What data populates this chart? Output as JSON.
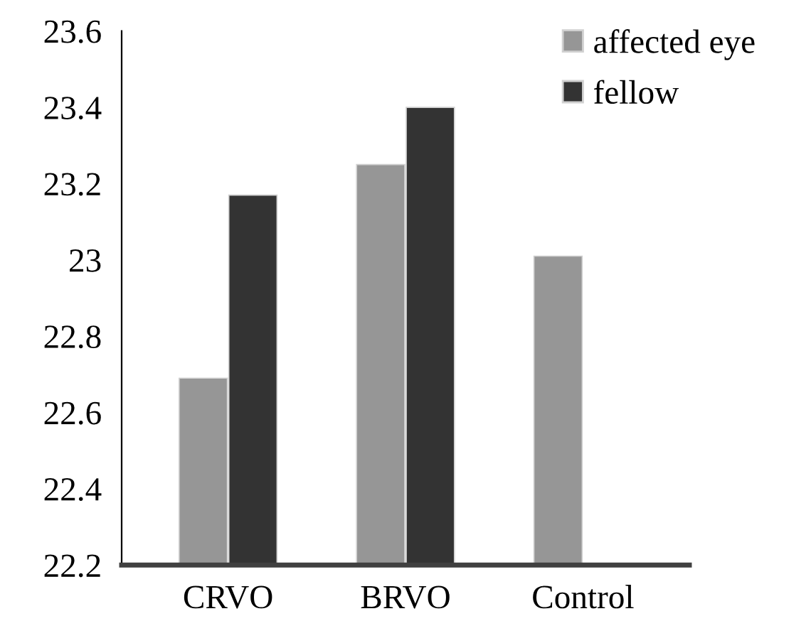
{
  "chart_data": {
    "type": "bar",
    "categories": [
      "CRVO",
      "BRVO",
      "Control"
    ],
    "series": [
      {
        "name": "affected eye",
        "color": "#969696",
        "values": [
          22.69,
          23.25,
          23.01
        ]
      },
      {
        "name": "fellow",
        "color": "#333333",
        "values": [
          23.17,
          23.4,
          null
        ]
      }
    ],
    "ylim": [
      22.2,
      23.6
    ],
    "yticks": [
      22.2,
      22.4,
      22.6,
      22.8,
      23,
      23.2,
      23.4,
      23.6
    ],
    "grid": false,
    "legend": "top right"
  }
}
